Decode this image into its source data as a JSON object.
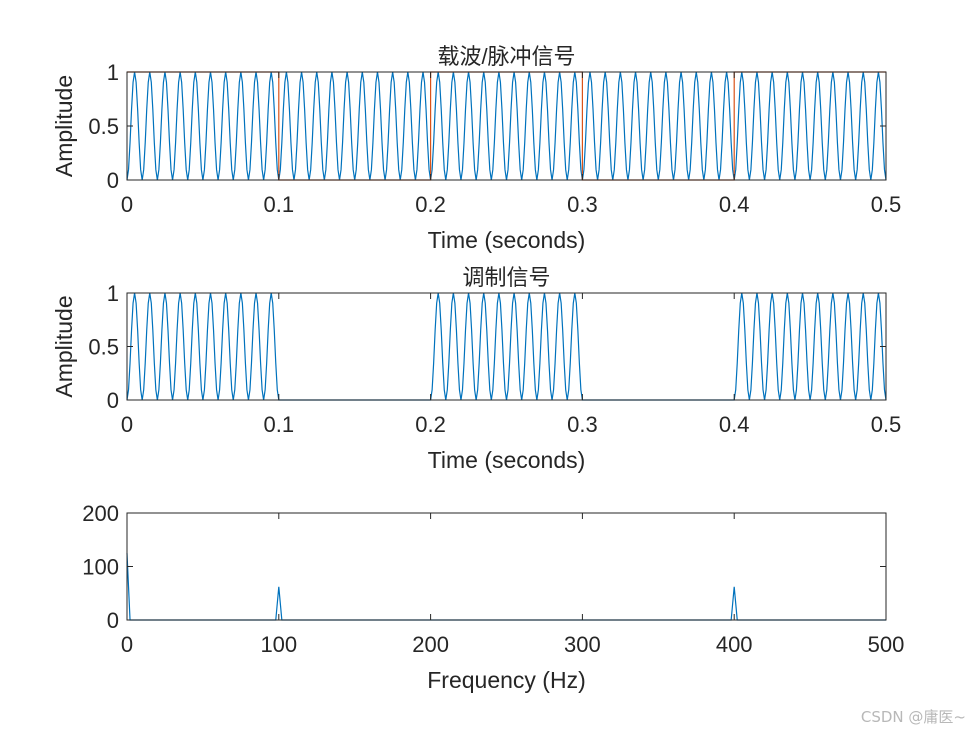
{
  "watermark": "CSDN @庸医~",
  "colors": {
    "series1": "#0072BD",
    "series2": "#D95319",
    "axis": "#262626"
  },
  "chart_data": [
    {
      "type": "line",
      "title": "载波/脉冲信号",
      "xlabel": "Time (seconds)",
      "ylabel": "Amplitude",
      "xlim": [
        0,
        0.5
      ],
      "ylim": [
        0,
        1
      ],
      "xticks": [
        "0",
        "0.1",
        "0.2",
        "0.3",
        "0.4",
        "0.5"
      ],
      "yticks": [
        "0",
        "0.5",
        "1"
      ],
      "grid": false,
      "series": [
        {
          "kind": "carrier",
          "formula": "0.5*(1 - cos(2*pi*100*t))",
          "frequency_hz": 100,
          "x_range": [
            0,
            0.5
          ],
          "sample_rate_hz": 1000,
          "color": "#0072BD"
        },
        {
          "kind": "pulse",
          "x": [
            0,
            0.1,
            0.1,
            0.2,
            0.2,
            0.3,
            0.3,
            0.4,
            0.4,
            0.5
          ],
          "values": [
            1,
            1,
            0,
            0,
            1,
            1,
            0,
            0,
            1,
            1
          ],
          "color": "#D95319"
        }
      ]
    },
    {
      "type": "line",
      "title": "调制信号",
      "xlabel": "Time (seconds)",
      "ylabel": "Amplitude",
      "xlim": [
        0,
        0.5
      ],
      "ylim": [
        0,
        1
      ],
      "xticks": [
        "0",
        "0.1",
        "0.2",
        "0.3",
        "0.4",
        "0.5"
      ],
      "yticks": [
        "0",
        "0.5",
        "1"
      ],
      "grid": false,
      "series": [
        {
          "kind": "modulated",
          "formula": "carrier * pulse",
          "frequency_hz": 100,
          "on_intervals": [
            [
              0,
              0.1
            ],
            [
              0.2,
              0.3
            ],
            [
              0.4,
              0.5
            ]
          ],
          "x_range": [
            0,
            0.5
          ],
          "sample_rate_hz": 1000,
          "color": "#0072BD"
        }
      ]
    },
    {
      "type": "line",
      "title": "",
      "xlabel": "Frequency (Hz)",
      "ylabel": "",
      "xlim": [
        0,
        500
      ],
      "ylim": [
        0,
        200
      ],
      "xticks": [
        "0",
        "100",
        "200",
        "300",
        "400",
        "500"
      ],
      "yticks": [
        "0",
        "100",
        "200"
      ],
      "grid": false,
      "series": [
        {
          "kind": "spectrum",
          "x": [
            0,
            2,
            98,
            100,
            102,
            398,
            400,
            402,
            500
          ],
          "values": [
            125,
            0,
            0,
            62,
            0,
            0,
            62,
            0,
            0
          ],
          "color": "#0072BD"
        }
      ]
    }
  ]
}
